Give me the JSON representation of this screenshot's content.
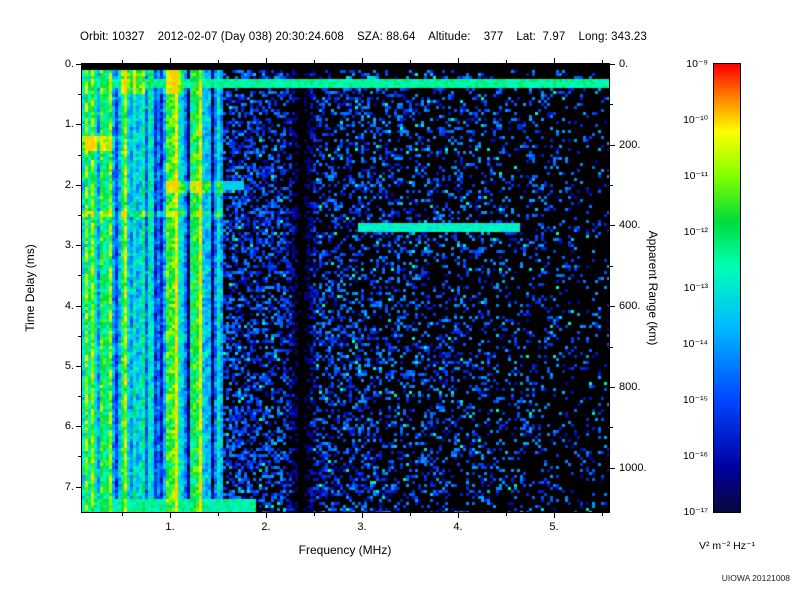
{
  "header": {
    "title": "Orbit: 10327    2012-02-07 (Day 038) 20:30:24.608    SZA: 88.64    Altitude:    377    Lat:  7.97    Long: 343.23",
    "fields": {
      "orbit": "10327",
      "date": "2012-02-07",
      "day_of_year": "038",
      "time_utc": "20:30:24.608",
      "sza_deg": "88.64",
      "altitude_km": "377",
      "latitude_deg": "7.97",
      "longitude_deg": "343.23"
    }
  },
  "footer": {
    "watermark": "UIOWA 20121008"
  },
  "chart_data": {
    "type": "heatmap",
    "description": "Orbital radar sounder ionogram: received spectral density versus sounding frequency (x) and echo time delay (y, increasing downward); right axis gives equivalent apparent range.",
    "xlabel": "Frequency (MHz)",
    "ylabel": "Time Delay (ms)",
    "y2label": "Apparent Range (km)",
    "xlim": [
      0.08,
      5.57
    ],
    "ylim": [
      0,
      7.42
    ],
    "y2lim": [
      0,
      1110
    ],
    "x_ticks": {
      "values": [
        1,
        2,
        3,
        4,
        5
      ],
      "labels": [
        "1.",
        "2.",
        "3.",
        "4.",
        "5."
      ]
    },
    "x_minor_ticks": [
      0.5,
      1.5,
      2.5,
      3.5,
      4.5,
      5.5
    ],
    "y_ticks": {
      "values": [
        0,
        1,
        2,
        3,
        4,
        5,
        6,
        7
      ],
      "labels": [
        "0.",
        "1.",
        "2.",
        "3.",
        "4.",
        "5.",
        "6.",
        "7."
      ]
    },
    "y_minor_ticks": [
      0.5,
      1.5,
      2.5,
      3.5,
      4.5,
      5.5,
      6.5
    ],
    "y2_ticks": {
      "values": [
        0,
        200,
        400,
        600,
        800,
        1000
      ],
      "labels": [
        "0.",
        "200.",
        "400.",
        "600.",
        "800.",
        "1000."
      ]
    },
    "y2_minor_ticks": [
      100,
      300,
      500,
      700,
      900,
      1100
    ],
    "colorbar": {
      "scale": "log",
      "range": [
        1e-17,
        1e-09
      ],
      "tick_labels": [
        "10⁻⁹",
        "10⁻¹⁰",
        "10⁻¹¹",
        "10⁻¹²",
        "10⁻¹³",
        "10⁻¹⁴",
        "10⁻¹⁵",
        "10⁻¹⁶",
        "10⁻¹⁷"
      ],
      "units": "V² m⁻² Hz⁻¹",
      "colormap": "rainbow (red = 1e-9 high, dark blue/black = 1e-17 low)"
    },
    "features": [
      {
        "kind": "broadband_emission",
        "freq_mhz": [
          0.08,
          1.55
        ],
        "time_ms": [
          0.12,
          7.42
        ],
        "level": "strong (~1e-13 to 1e-11), cyan/green vertically striated bands at all delays"
      },
      {
        "kind": "horizontal_line",
        "time_ms": 0.3,
        "freq_mhz": [
          0.08,
          5.57
        ],
        "level": "bright cyan (~1e-12/1e-13) line across entire frequency sweep"
      },
      {
        "kind": "echo_trace",
        "time_ms": 2.72,
        "freq_mhz": [
          3.0,
          4.6
        ],
        "apparent_range_km": 405,
        "level": "cyan (~1e-13) horizontal reflection trace"
      },
      {
        "kind": "quiet_band",
        "freq_mhz": [
          2.28,
          2.46
        ],
        "level": "near noise floor (black vertical stripe)"
      },
      {
        "kind": "background",
        "freq_mhz": [
          1.55,
          5.57
        ],
        "level": "weak speckle ~1e-16 to 1e-15 (dark blue), density decreasing toward high frequency"
      },
      {
        "kind": "bright_spots",
        "freq_mhz": [
          0.5,
          1.1
        ],
        "time_ms": [
          0.12,
          0.5
        ],
        "level": "yellow-green peaks (~1e-10)"
      }
    ]
  }
}
